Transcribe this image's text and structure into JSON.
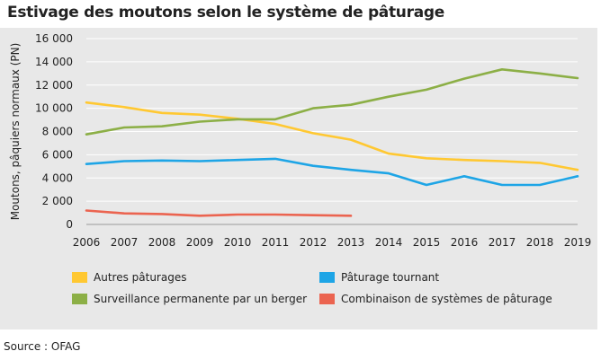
{
  "title": "Estivage des moutons selon le système de pâturage",
  "source": "Source : OFAG",
  "chart_data": {
    "type": "line",
    "title": "Estivage des moutons selon le système de pâturage",
    "xlabel": "",
    "ylabel": "Moutons, pâquiers normaux (PN)",
    "ylim": [
      0,
      16000
    ],
    "yticks": [
      0,
      2000,
      4000,
      6000,
      8000,
      10000,
      12000,
      14000,
      16000
    ],
    "ytick_labels": [
      "0",
      "2 000",
      "4 000",
      "6 000",
      "8 000",
      "10 000",
      "12 000",
      "14 000",
      "16 000"
    ],
    "grid": true,
    "categories": [
      "2006",
      "2007",
      "2008",
      "2009",
      "2010",
      "2011",
      "2012",
      "2013",
      "2014",
      "2015",
      "2016",
      "2017",
      "2018",
      "2019"
    ],
    "series": [
      {
        "name": "Autres pâturages",
        "color": "#ffc832",
        "values": [
          10500,
          10100,
          9600,
          9450,
          9100,
          8650,
          7850,
          7300,
          6100,
          5700,
          5550,
          5450,
          5300,
          4700
        ]
      },
      {
        "name": "Pâturage tournant",
        "color": "#1ea5e6",
        "values": [
          5200,
          5450,
          5500,
          5450,
          5550,
          5650,
          5050,
          4700,
          4400,
          3400,
          4150,
          3400,
          3400,
          4150
        ]
      },
      {
        "name": "Surveillance permanente par un berger",
        "color": "#8caf46",
        "values": [
          7750,
          8350,
          8450,
          8850,
          9050,
          9050,
          10000,
          10300,
          11000,
          11600,
          12550,
          13350,
          13000,
          12600
        ]
      },
      {
        "name": "Combinaison de systèmes de pâturage",
        "color": "#eb6450",
        "values": [
          1200,
          950,
          900,
          750,
          850,
          850,
          800,
          750,
          null,
          null,
          null,
          null,
          null,
          null
        ]
      }
    ]
  }
}
